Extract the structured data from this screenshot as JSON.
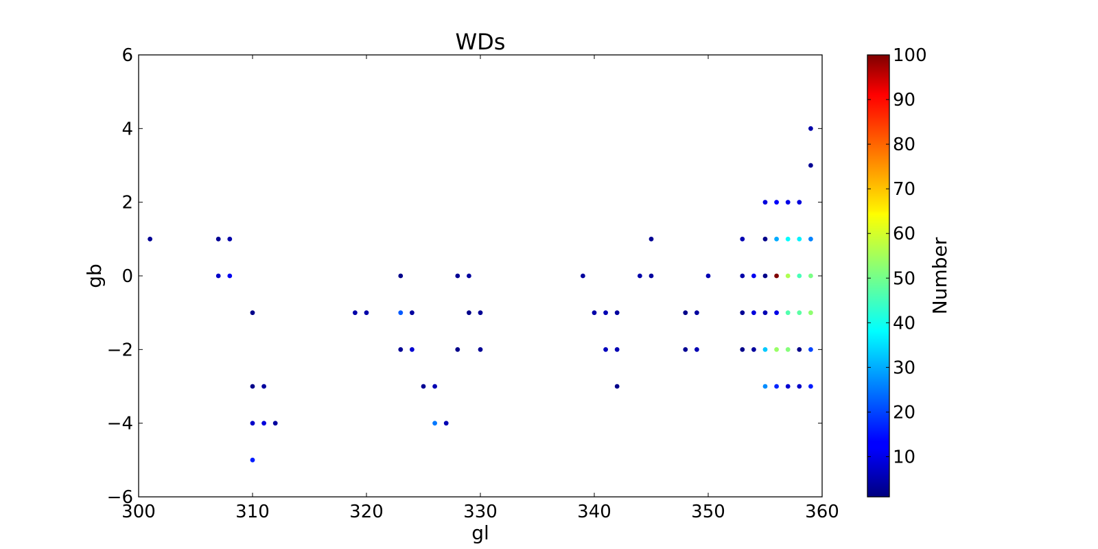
{
  "chart_data": {
    "type": "scatter",
    "title": "WDs",
    "xlabel": "gl",
    "ylabel": "gb",
    "xlim": [
      300,
      360
    ],
    "ylim": [
      -6,
      6
    ],
    "xticks": [
      300,
      310,
      320,
      330,
      340,
      350,
      360
    ],
    "yticks": [
      -6,
      -4,
      -2,
      0,
      2,
      4,
      6
    ],
    "xtick_labels": [
      "300",
      "310",
      "320",
      "330",
      "340",
      "350",
      "360"
    ],
    "ytick_labels": [
      "−6",
      "−4",
      "−2",
      "0",
      "2",
      "4",
      "6"
    ],
    "grid": false,
    "colormap": "jet",
    "colorbar": {
      "label": "Number",
      "range": [
        1,
        100
      ],
      "ticks": [
        10,
        20,
        30,
        40,
        50,
        60,
        70,
        80,
        90,
        100
      ],
      "tick_labels": [
        "10",
        "20",
        "30",
        "40",
        "50",
        "60",
        "70",
        "80",
        "90",
        "100"
      ]
    },
    "points": [
      {
        "gl": 301,
        "gb": 1,
        "n": 3
      },
      {
        "gl": 307,
        "gb": 1,
        "n": 3
      },
      {
        "gl": 308,
        "gb": 1,
        "n": 5
      },
      {
        "gl": 307,
        "gb": 0,
        "n": 8
      },
      {
        "gl": 308,
        "gb": 0,
        "n": 12
      },
      {
        "gl": 310,
        "gb": -1,
        "n": 2
      },
      {
        "gl": 310,
        "gb": -3,
        "n": 2
      },
      {
        "gl": 311,
        "gb": -3,
        "n": 4
      },
      {
        "gl": 310,
        "gb": -4,
        "n": 8
      },
      {
        "gl": 311,
        "gb": -4,
        "n": 10
      },
      {
        "gl": 312,
        "gb": -4,
        "n": 4
      },
      {
        "gl": 310,
        "gb": -5,
        "n": 16
      },
      {
        "gl": 319,
        "gb": -1,
        "n": 5
      },
      {
        "gl": 320,
        "gb": -1,
        "n": 5
      },
      {
        "gl": 323,
        "gb": 0,
        "n": 2
      },
      {
        "gl": 323,
        "gb": -1,
        "n": 22
      },
      {
        "gl": 324,
        "gb": -1,
        "n": 4
      },
      {
        "gl": 323,
        "gb": -2,
        "n": 3
      },
      {
        "gl": 324,
        "gb": -2,
        "n": 9
      },
      {
        "gl": 325,
        "gb": -3,
        "n": 3
      },
      {
        "gl": 326,
        "gb": -3,
        "n": 6
      },
      {
        "gl": 326,
        "gb": -4,
        "n": 25
      },
      {
        "gl": 327,
        "gb": -4,
        "n": 6
      },
      {
        "gl": 328,
        "gb": 0,
        "n": 3
      },
      {
        "gl": 329,
        "gb": 0,
        "n": 4
      },
      {
        "gl": 328,
        "gb": -2,
        "n": 2
      },
      {
        "gl": 329,
        "gb": -1,
        "n": 2
      },
      {
        "gl": 330,
        "gb": -1,
        "n": 3
      },
      {
        "gl": 330,
        "gb": -2,
        "n": 3
      },
      {
        "gl": 339,
        "gb": 0,
        "n": 4
      },
      {
        "gl": 340,
        "gb": -1,
        "n": 5
      },
      {
        "gl": 341,
        "gb": -1,
        "n": 6
      },
      {
        "gl": 342,
        "gb": -1,
        "n": 4
      },
      {
        "gl": 341,
        "gb": -2,
        "n": 7
      },
      {
        "gl": 342,
        "gb": -2,
        "n": 6
      },
      {
        "gl": 342,
        "gb": -3,
        "n": 2
      },
      {
        "gl": 344,
        "gb": 0,
        "n": 5
      },
      {
        "gl": 345,
        "gb": 0,
        "n": 4
      },
      {
        "gl": 345,
        "gb": 1,
        "n": 3
      },
      {
        "gl": 348,
        "gb": -1,
        "n": 2
      },
      {
        "gl": 349,
        "gb": -1,
        "n": 4
      },
      {
        "gl": 348,
        "gb": -2,
        "n": 3
      },
      {
        "gl": 349,
        "gb": -2,
        "n": 6
      },
      {
        "gl": 350,
        "gb": 0,
        "n": 6
      },
      {
        "gl": 353,
        "gb": 1,
        "n": 6
      },
      {
        "gl": 353,
        "gb": 0,
        "n": 5
      },
      {
        "gl": 353,
        "gb": -1,
        "n": 3
      },
      {
        "gl": 353,
        "gb": -2,
        "n": 2
      },
      {
        "gl": 354,
        "gb": 0,
        "n": 12
      },
      {
        "gl": 354,
        "gb": -1,
        "n": 10
      },
      {
        "gl": 354,
        "gb": -2,
        "n": 4
      },
      {
        "gl": 355,
        "gb": 2,
        "n": 10
      },
      {
        "gl": 355,
        "gb": 1,
        "n": 2
      },
      {
        "gl": 355,
        "gb": 0,
        "n": 2
      },
      {
        "gl": 355,
        "gb": -1,
        "n": 6
      },
      {
        "gl": 355,
        "gb": -2,
        "n": 33
      },
      {
        "gl": 355,
        "gb": -3,
        "n": 27
      },
      {
        "gl": 356,
        "gb": 2,
        "n": 13
      },
      {
        "gl": 356,
        "gb": 1,
        "n": 30
      },
      {
        "gl": 356,
        "gb": 0,
        "n": 100
      },
      {
        "gl": 356,
        "gb": -1,
        "n": 11
      },
      {
        "gl": 356,
        "gb": -2,
        "n": 53
      },
      {
        "gl": 356,
        "gb": -3,
        "n": 17
      },
      {
        "gl": 357,
        "gb": 2,
        "n": 11
      },
      {
        "gl": 357,
        "gb": 1,
        "n": 38
      },
      {
        "gl": 357,
        "gb": 0,
        "n": 55
      },
      {
        "gl": 357,
        "gb": -1,
        "n": 46
      },
      {
        "gl": 357,
        "gb": -2,
        "n": 51
      },
      {
        "gl": 357,
        "gb": -3,
        "n": 9
      },
      {
        "gl": 358,
        "gb": 2,
        "n": 10
      },
      {
        "gl": 358,
        "gb": 1,
        "n": 37
      },
      {
        "gl": 358,
        "gb": 0,
        "n": 45
      },
      {
        "gl": 358,
        "gb": -1,
        "n": 47
      },
      {
        "gl": 358,
        "gb": -2,
        "n": 2
      },
      {
        "gl": 358,
        "gb": -3,
        "n": 8
      },
      {
        "gl": 359,
        "gb": 4,
        "n": 5
      },
      {
        "gl": 359,
        "gb": 3,
        "n": 3
      },
      {
        "gl": 359,
        "gb": 1,
        "n": 26
      },
      {
        "gl": 359,
        "gb": 0,
        "n": 50
      },
      {
        "gl": 359,
        "gb": -1,
        "n": 52
      },
      {
        "gl": 359,
        "gb": -2,
        "n": 20
      },
      {
        "gl": 359,
        "gb": -3,
        "n": 16
      }
    ]
  }
}
